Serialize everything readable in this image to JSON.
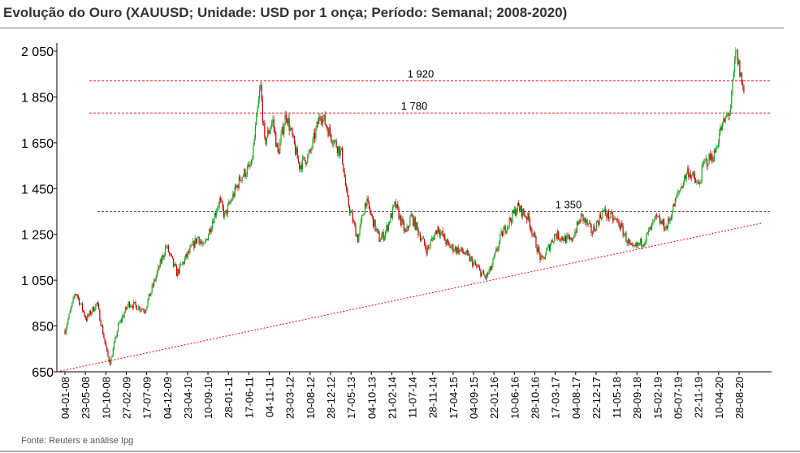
{
  "chart_data": {
    "type": "candlestick",
    "title": "Evolução do Ouro (XAUUSD;  Unidade: USD por 1 onça; Período: Semanal;  2008-2020)",
    "source": "Fonte: Reuters e análise Ipg",
    "ylim": [
      650,
      2050
    ],
    "yticks": [
      {
        "v": 650,
        "label": "650"
      },
      {
        "v": 850,
        "label": "850"
      },
      {
        "v": 1050,
        "label": "1 050"
      },
      {
        "v": 1250,
        "label": "1 250"
      },
      {
        "v": 1450,
        "label": "1 450"
      },
      {
        "v": 1650,
        "label": "1 650"
      },
      {
        "v": 1850,
        "label": "1 850"
      },
      {
        "v": 2050,
        "label": "2 050"
      }
    ],
    "xlabels": [
      "04-01-08",
      "23-05-08",
      "10-10-08",
      "27-02-09",
      "17-07-09",
      "04-12-09",
      "23-04-10",
      "10-09-10",
      "28-01-11",
      "17-06-11",
      "04-11-11",
      "23-03-12",
      "10-08-12",
      "28-12-12",
      "17-05-13",
      "04-10-13",
      "21-02-14",
      "11-07-14",
      "28-11-14",
      "17-04-15",
      "04-09-15",
      "22-01-16",
      "10-06-16",
      "28-10-16",
      "17-03-17",
      "04-08-17",
      "22-12-17",
      "11-05-18",
      "28-09-18",
      "15-02-19",
      "05-07-19",
      "22-11-19",
      "10-04-20",
      "28-08-20"
    ],
    "xrange_years": [
      2008.0,
      2020.66
    ],
    "price_path": [
      [
        2008.0,
        830
      ],
      [
        2008.2,
        1000
      ],
      [
        2008.4,
        880
      ],
      [
        2008.6,
        950
      ],
      [
        2008.8,
        720
      ],
      [
        2008.85,
        690
      ],
      [
        2009.0,
        850
      ],
      [
        2009.2,
        950
      ],
      [
        2009.5,
        920
      ],
      [
        2009.9,
        1200
      ],
      [
        2010.1,
        1080
      ],
      [
        2010.5,
        1240
      ],
      [
        2010.6,
        1190
      ],
      [
        2010.9,
        1400
      ],
      [
        2011.0,
        1330
      ],
      [
        2011.3,
        1500
      ],
      [
        2011.5,
        1550
      ],
      [
        2011.67,
        1900
      ],
      [
        2011.75,
        1650
      ],
      [
        2011.9,
        1750
      ],
      [
        2012.0,
        1600
      ],
      [
        2012.15,
        1780
      ],
      [
        2012.4,
        1550
      ],
      [
        2012.6,
        1600
      ],
      [
        2012.8,
        1780
      ],
      [
        2013.0,
        1680
      ],
      [
        2013.2,
        1600
      ],
      [
        2013.3,
        1400
      ],
      [
        2013.5,
        1230
      ],
      [
        2013.65,
        1400
      ],
      [
        2013.9,
        1230
      ],
      [
        2014.0,
        1250
      ],
      [
        2014.2,
        1380
      ],
      [
        2014.4,
        1250
      ],
      [
        2014.5,
        1330
      ],
      [
        2014.8,
        1180
      ],
      [
        2015.0,
        1280
      ],
      [
        2015.2,
        1200
      ],
      [
        2015.5,
        1170
      ],
      [
        2015.9,
        1060
      ],
      [
        2016.0,
        1100
      ],
      [
        2016.2,
        1250
      ],
      [
        2016.5,
        1370
      ],
      [
        2016.7,
        1320
      ],
      [
        2016.95,
        1130
      ],
      [
        2017.2,
        1250
      ],
      [
        2017.5,
        1220
      ],
      [
        2017.7,
        1330
      ],
      [
        2017.9,
        1260
      ],
      [
        2018.1,
        1350
      ],
      [
        2018.4,
        1300
      ],
      [
        2018.65,
        1180
      ],
      [
        2018.9,
        1230
      ],
      [
        2019.1,
        1320
      ],
      [
        2019.3,
        1280
      ],
      [
        2019.5,
        1420
      ],
      [
        2019.7,
        1530
      ],
      [
        2019.9,
        1460
      ],
      [
        2020.0,
        1560
      ],
      [
        2020.2,
        1600
      ],
      [
        2020.3,
        1700
      ],
      [
        2020.5,
        1800
      ],
      [
        2020.6,
        2050
      ],
      [
        2020.7,
        1930
      ],
      [
        2020.75,
        1870
      ]
    ],
    "levels": [
      {
        "value": 1920,
        "label": "1 920",
        "color": "#ff0000"
      },
      {
        "value": 1780,
        "label": "1 780",
        "color": "#ff0000"
      },
      {
        "value": 1350,
        "label": "1 350",
        "color": "#333333"
      }
    ],
    "trendline": {
      "from": [
        2007.85,
        650
      ],
      "to": [
        2021.1,
        1300
      ],
      "color": "#ff0000"
    },
    "colors": {
      "up": "#22a022",
      "down": "#c00000"
    }
  }
}
